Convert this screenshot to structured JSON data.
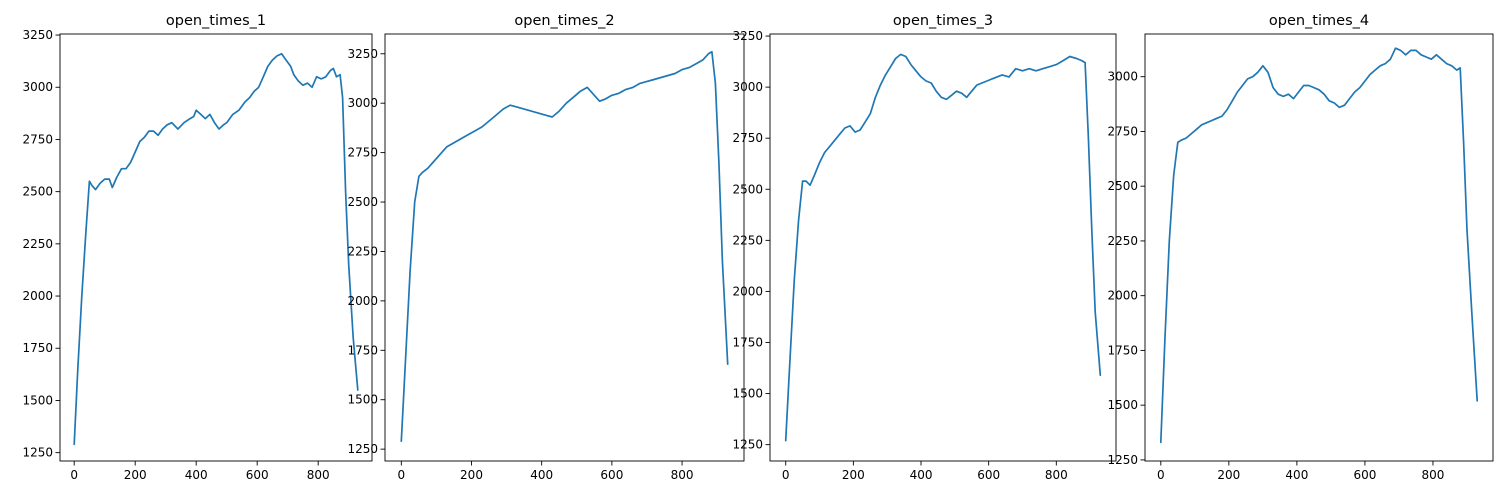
{
  "figure": {
    "background": "#ffffff",
    "line_color": "#1f77b4"
  },
  "chart_data": [
    {
      "type": "line",
      "title": "open_times_1",
      "xlabel": "",
      "ylabel": "",
      "xlim": [
        -46.5,
        976.5
      ],
      "ylim": [
        1210,
        3255
      ],
      "xticks": [
        0,
        200,
        400,
        600,
        800
      ],
      "yticks": [
        1250,
        1500,
        1750,
        2000,
        2250,
        2500,
        2750,
        3000,
        3250
      ],
      "grid": false,
      "series": [
        {
          "color": "#1f77b4",
          "x": [
            0,
            12,
            25,
            38,
            50,
            58,
            70,
            85,
            100,
            115,
            125,
            140,
            155,
            170,
            185,
            200,
            215,
            230,
            245,
            260,
            275,
            290,
            305,
            320,
            340,
            360,
            380,
            392,
            400,
            415,
            430,
            445,
            460,
            475,
            490,
            500,
            520,
            540,
            560,
            575,
            590,
            605,
            620,
            635,
            650,
            665,
            680,
            695,
            710,
            720,
            735,
            750,
            765,
            780,
            795,
            810,
            825,
            840,
            850,
            860,
            872,
            880,
            890,
            900,
            915,
            930
          ],
          "y": [
            1290,
            1650,
            2000,
            2300,
            2550,
            2530,
            2510,
            2540,
            2560,
            2560,
            2520,
            2570,
            2610,
            2610,
            2640,
            2690,
            2740,
            2760,
            2790,
            2790,
            2770,
            2800,
            2820,
            2830,
            2800,
            2830,
            2850,
            2860,
            2890,
            2870,
            2850,
            2870,
            2830,
            2800,
            2820,
            2830,
            2870,
            2890,
            2930,
            2950,
            2980,
            3000,
            3050,
            3100,
            3130,
            3150,
            3160,
            3130,
            3100,
            3060,
            3030,
            3010,
            3020,
            3000,
            3050,
            3040,
            3050,
            3080,
            3090,
            3050,
            3060,
            2950,
            2500,
            2150,
            1800,
            1550
          ]
        }
      ]
    },
    {
      "type": "line",
      "title": "open_times_2",
      "xlabel": "",
      "ylabel": "",
      "xlim": [
        -46.5,
        976.5
      ],
      "ylim": [
        1190,
        3350
      ],
      "xticks": [
        0,
        200,
        400,
        600,
        800
      ],
      "yticks": [
        1250,
        1500,
        1750,
        2000,
        2250,
        2500,
        2750,
        3000,
        3250
      ],
      "grid": false,
      "series": [
        {
          "color": "#1f77b4",
          "x": [
            0,
            12,
            25,
            38,
            50,
            60,
            75,
            90,
            110,
            130,
            150,
            170,
            190,
            210,
            230,
            250,
            270,
            290,
            310,
            330,
            350,
            370,
            390,
            410,
            430,
            450,
            470,
            490,
            510,
            530,
            550,
            565,
            580,
            600,
            620,
            640,
            660,
            680,
            700,
            720,
            740,
            760,
            780,
            800,
            820,
            840,
            860,
            875,
            885,
            895,
            905,
            915,
            930
          ],
          "y": [
            1290,
            1700,
            2150,
            2500,
            2630,
            2650,
            2670,
            2700,
            2740,
            2780,
            2800,
            2820,
            2840,
            2860,
            2880,
            2910,
            2940,
            2970,
            2990,
            2980,
            2970,
            2960,
            2950,
            2940,
            2930,
            2960,
            3000,
            3030,
            3060,
            3080,
            3040,
            3010,
            3020,
            3040,
            3050,
            3070,
            3080,
            3100,
            3110,
            3120,
            3130,
            3140,
            3150,
            3170,
            3180,
            3200,
            3220,
            3250,
            3260,
            3100,
            2700,
            2200,
            1680
          ]
        }
      ]
    },
    {
      "type": "line",
      "title": "open_times_3",
      "xlabel": "",
      "ylabel": "",
      "xlim": [
        -46.5,
        976.5
      ],
      "ylim": [
        1170,
        3260
      ],
      "xticks": [
        0,
        200,
        400,
        600,
        800
      ],
      "yticks": [
        1250,
        1500,
        1750,
        2000,
        2250,
        2500,
        2750,
        3000,
        3250
      ],
      "grid": false,
      "series": [
        {
          "color": "#1f77b4",
          "x": [
            0,
            12,
            25,
            38,
            50,
            60,
            72,
            85,
            100,
            115,
            130,
            145,
            160,
            175,
            190,
            205,
            220,
            235,
            250,
            265,
            280,
            295,
            310,
            325,
            340,
            355,
            370,
            385,
            400,
            415,
            430,
            445,
            460,
            475,
            490,
            505,
            520,
            535,
            550,
            565,
            580,
            595,
            610,
            625,
            640,
            660,
            680,
            700,
            720,
            740,
            760,
            780,
            800,
            820,
            840,
            860,
            875,
            885,
            895,
            905,
            915,
            930
          ],
          "y": [
            1270,
            1650,
            2050,
            2350,
            2540,
            2540,
            2520,
            2570,
            2630,
            2680,
            2710,
            2740,
            2770,
            2800,
            2810,
            2780,
            2790,
            2830,
            2870,
            2950,
            3010,
            3060,
            3100,
            3140,
            3160,
            3150,
            3110,
            3080,
            3050,
            3030,
            3020,
            2980,
            2950,
            2940,
            2960,
            2980,
            2970,
            2950,
            2980,
            3010,
            3020,
            3030,
            3040,
            3050,
            3060,
            3050,
            3090,
            3080,
            3090,
            3080,
            3090,
            3100,
            3110,
            3130,
            3150,
            3140,
            3130,
            3120,
            2750,
            2300,
            1900,
            1590
          ]
        }
      ]
    },
    {
      "type": "line",
      "title": "open_times_4",
      "xlabel": "",
      "ylabel": "",
      "xlim": [
        -46.5,
        976.5
      ],
      "ylim": [
        1245,
        3195
      ],
      "xticks": [
        0,
        200,
        400,
        600,
        800
      ],
      "yticks": [
        1250,
        1500,
        1750,
        2000,
        2250,
        2500,
        2750,
        3000
      ],
      "grid": false,
      "series": [
        {
          "color": "#1f77b4",
          "x": [
            0,
            12,
            25,
            38,
            50,
            60,
            75,
            90,
            105,
            120,
            135,
            150,
            165,
            180,
            195,
            210,
            225,
            240,
            255,
            270,
            285,
            300,
            315,
            330,
            345,
            360,
            375,
            390,
            405,
            420,
            435,
            450,
            465,
            480,
            495,
            510,
            525,
            540,
            555,
            570,
            585,
            600,
            615,
            630,
            645,
            660,
            675,
            690,
            705,
            720,
            735,
            750,
            765,
            780,
            795,
            810,
            825,
            840,
            855,
            870,
            880,
            890,
            900,
            915,
            930
          ],
          "y": [
            1330,
            1800,
            2250,
            2550,
            2700,
            2710,
            2720,
            2740,
            2760,
            2780,
            2790,
            2800,
            2810,
            2820,
            2850,
            2890,
            2930,
            2960,
            2990,
            3000,
            3020,
            3050,
            3020,
            2950,
            2920,
            2910,
            2920,
            2900,
            2930,
            2960,
            2960,
            2950,
            2940,
            2920,
            2890,
            2880,
            2860,
            2870,
            2900,
            2930,
            2950,
            2980,
            3010,
            3030,
            3050,
            3060,
            3080,
            3130,
            3120,
            3100,
            3120,
            3120,
            3100,
            3090,
            3080,
            3100,
            3080,
            3060,
            3050,
            3030,
            3040,
            2700,
            2300,
            1900,
            1520
          ]
        }
      ]
    }
  ]
}
